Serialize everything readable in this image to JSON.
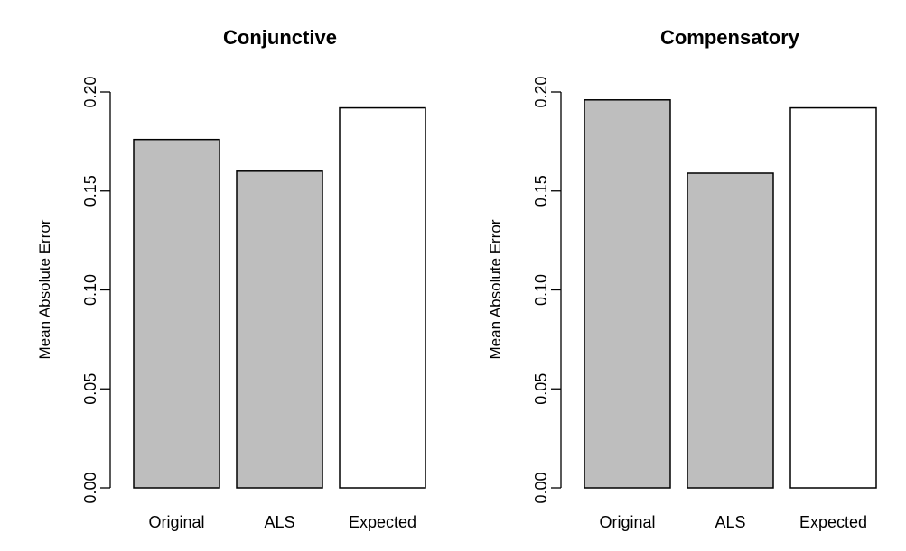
{
  "chart_data": [
    {
      "type": "bar",
      "title": "Conjunctive",
      "ylabel": "Mean Absolute Error",
      "xlabel": "",
      "categories": [
        "Original",
        "ALS",
        "Expected"
      ],
      "values": [
        0.176,
        0.16,
        0.192
      ],
      "bar_colors": [
        "#bebebe",
        "#bebebe",
        "#ffffff"
      ],
      "ylim": [
        0,
        0.2
      ],
      "yticks": [
        0.0,
        0.05,
        0.1,
        0.15,
        0.2
      ],
      "ytick_labels": [
        "0.00",
        "0.05",
        "0.10",
        "0.15",
        "0.20"
      ],
      "grid": false,
      "legend": "none"
    },
    {
      "type": "bar",
      "title": "Compensatory",
      "ylabel": "Mean Absolute Error",
      "xlabel": "",
      "categories": [
        "Original",
        "ALS",
        "Expected"
      ],
      "values": [
        0.196,
        0.159,
        0.192
      ],
      "bar_colors": [
        "#bebebe",
        "#bebebe",
        "#ffffff"
      ],
      "ylim": [
        0,
        0.2
      ],
      "yticks": [
        0.0,
        0.05,
        0.1,
        0.15,
        0.2
      ],
      "ytick_labels": [
        "0.00",
        "0.05",
        "0.10",
        "0.15",
        "0.20"
      ],
      "grid": false,
      "legend": "none"
    }
  ]
}
